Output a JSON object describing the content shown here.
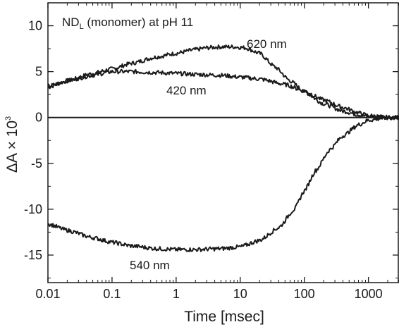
{
  "chart_data": {
    "type": "line",
    "title": "",
    "annotation": {
      "prefix": "ND",
      "subscript": "L",
      "rest": " (monomer) at pH 11"
    },
    "xlabel": "Time [msec]",
    "ylabel": {
      "base": "ΔA × 10",
      "exponent": "3"
    },
    "xscale": "log",
    "xlim": [
      0.01,
      3000
    ],
    "ylim": [
      -18,
      12.5
    ],
    "xticks": [
      {
        "value": 0.01,
        "label": "0.01"
      },
      {
        "value": 0.1,
        "label": "0.1"
      },
      {
        "value": 1,
        "label": "1"
      },
      {
        "value": 10,
        "label": "10"
      },
      {
        "value": 100,
        "label": "100"
      },
      {
        "value": 1000,
        "label": "1000"
      }
    ],
    "yticks": [
      {
        "value": 10,
        "label": "10"
      },
      {
        "value": 5,
        "label": "5"
      },
      {
        "value": 0,
        "label": "0"
      },
      {
        "value": -5,
        "label": "-5"
      },
      {
        "value": -10,
        "label": "-10"
      },
      {
        "value": -15,
        "label": "-15"
      }
    ],
    "baseline": 0,
    "grid": false,
    "legend": "none",
    "line_color": "#1a1a1a",
    "series": [
      {
        "name": "620 nm",
        "x": [
          0.01,
          0.02,
          0.05,
          0.1,
          0.2,
          0.5,
          1,
          2,
          3,
          5,
          8,
          12,
          20,
          35,
          60,
          100,
          200,
          400,
          700,
          1000,
          2000,
          3000
        ],
        "y": [
          3.3,
          4.0,
          4.8,
          5.3,
          5.9,
          6.6,
          7.0,
          7.4,
          7.6,
          7.7,
          7.7,
          7.6,
          7.0,
          5.5,
          4.0,
          2.8,
          1.5,
          0.7,
          0.3,
          0.1,
          0.0,
          0.0
        ]
      },
      {
        "name": "420 nm",
        "x": [
          0.01,
          0.02,
          0.05,
          0.1,
          0.2,
          0.5,
          1,
          2,
          5,
          10,
          20,
          50,
          100,
          200,
          400,
          700,
          1000,
          2000,
          3000
        ],
        "y": [
          3.4,
          4.0,
          4.6,
          5.0,
          5.0,
          4.9,
          4.8,
          4.7,
          4.6,
          4.4,
          4.2,
          3.6,
          2.9,
          1.9,
          1.1,
          0.5,
          0.2,
          0.0,
          0.0
        ]
      },
      {
        "name": "540 nm",
        "x": [
          0.01,
          0.02,
          0.05,
          0.1,
          0.2,
          0.5,
          1,
          2,
          5,
          10,
          20,
          40,
          70,
          100,
          150,
          250,
          400,
          700,
          1000,
          2000,
          3000
        ],
        "y": [
          -11.6,
          -12.3,
          -13.1,
          -13.6,
          -14.0,
          -14.3,
          -14.4,
          -14.4,
          -14.3,
          -14.1,
          -13.4,
          -12.0,
          -10.0,
          -8.0,
          -5.8,
          -3.5,
          -2.0,
          -0.8,
          -0.3,
          0.0,
          0.0
        ]
      }
    ],
    "labels": [
      {
        "text": "620 nm",
        "series": "620 nm"
      },
      {
        "text": "420 nm",
        "series": "420 nm"
      },
      {
        "text": "540 nm",
        "series": "540 nm"
      }
    ]
  }
}
